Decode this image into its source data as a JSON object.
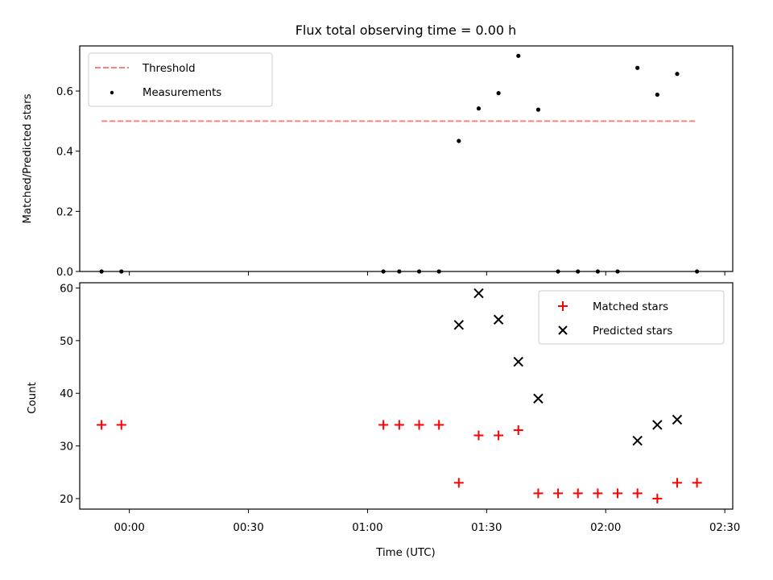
{
  "chart_data": [
    {
      "type": "scatter",
      "title": "Flux total observing time = 0.00 h",
      "xlabel": "",
      "ylabel": "Matched/Predicted stars",
      "xlim": [
        "23:47:30",
        "02:32:00"
      ],
      "ylim": [
        0,
        0.75
      ],
      "yticks": [
        0.0,
        0.2,
        0.4,
        0.6
      ],
      "ytick_labels": [
        "0.0",
        "0.2",
        "0.4",
        "0.6"
      ],
      "xticks": [
        "00:00",
        "00:30",
        "01:00",
        "01:30",
        "02:00",
        "02:30"
      ],
      "grid": false,
      "legend": {
        "position": "top-left",
        "entries": [
          {
            "label": "Threshold",
            "marker": "dashed-line",
            "color": "#ff7f7f"
          },
          {
            "label": "Measurements",
            "marker": "dot",
            "color": "#000000"
          }
        ]
      },
      "series": [
        {
          "name": "Threshold",
          "style": "dashed-line",
          "color": "#ff7f7f",
          "x": [
            "23:53",
            "02:23"
          ],
          "y": [
            0.5,
            0.5
          ]
        },
        {
          "name": "Measurements",
          "style": "dot",
          "color": "#000000",
          "x": [
            "23:53",
            "23:58",
            "01:04",
            "01:08",
            "01:13",
            "01:18",
            "01:23",
            "01:28",
            "01:33",
            "01:38",
            "01:43",
            "01:48",
            "01:53",
            "01:58",
            "02:03",
            "02:08",
            "02:13",
            "02:18",
            "02:23"
          ],
          "y": [
            0.0,
            0.0,
            0.0,
            0.0,
            0.0,
            0.0,
            0.434,
            0.542,
            0.593,
            0.717,
            0.538,
            0.0,
            0.0,
            0.0,
            0.0,
            0.677,
            0.588,
            0.657,
            0.0
          ]
        }
      ]
    },
    {
      "type": "scatter",
      "title": "",
      "xlabel": "Time (UTC)",
      "ylabel": "Count",
      "xlim": [
        "23:47:30",
        "02:32:00"
      ],
      "ylim": [
        18,
        61
      ],
      "yticks": [
        20,
        30,
        40,
        50,
        60
      ],
      "ytick_labels": [
        "20",
        "30",
        "40",
        "50",
        "60"
      ],
      "xticks": [
        "00:00",
        "00:30",
        "01:00",
        "01:30",
        "02:00",
        "02:30"
      ],
      "xtick_labels": [
        "00:00",
        "00:30",
        "01:00",
        "01:30",
        "02:00",
        "02:30"
      ],
      "grid": false,
      "legend": {
        "position": "top-right",
        "entries": [
          {
            "label": "Matched stars",
            "marker": "plus",
            "color": "#ff0000"
          },
          {
            "label": "Predicted stars",
            "marker": "x",
            "color": "#000000"
          }
        ]
      },
      "series": [
        {
          "name": "Matched stars",
          "style": "plus",
          "color": "#ff0000",
          "x": [
            "23:53",
            "23:58",
            "01:04",
            "01:08",
            "01:13",
            "01:18",
            "01:23",
            "01:28",
            "01:33",
            "01:38",
            "01:43",
            "01:48",
            "01:53",
            "01:58",
            "02:03",
            "02:08",
            "02:13",
            "02:18",
            "02:23"
          ],
          "y": [
            34,
            34,
            34,
            34,
            34,
            34,
            23,
            32,
            32,
            33,
            21,
            21,
            21,
            21,
            21,
            21,
            20,
            23,
            23
          ]
        },
        {
          "name": "Predicted stars",
          "style": "x",
          "color": "#000000",
          "x": [
            "01:23",
            "01:28",
            "01:33",
            "01:38",
            "01:43",
            "02:08",
            "02:13",
            "02:18"
          ],
          "y": [
            53,
            59,
            54,
            46,
            39,
            31,
            34,
            35
          ]
        }
      ]
    }
  ]
}
